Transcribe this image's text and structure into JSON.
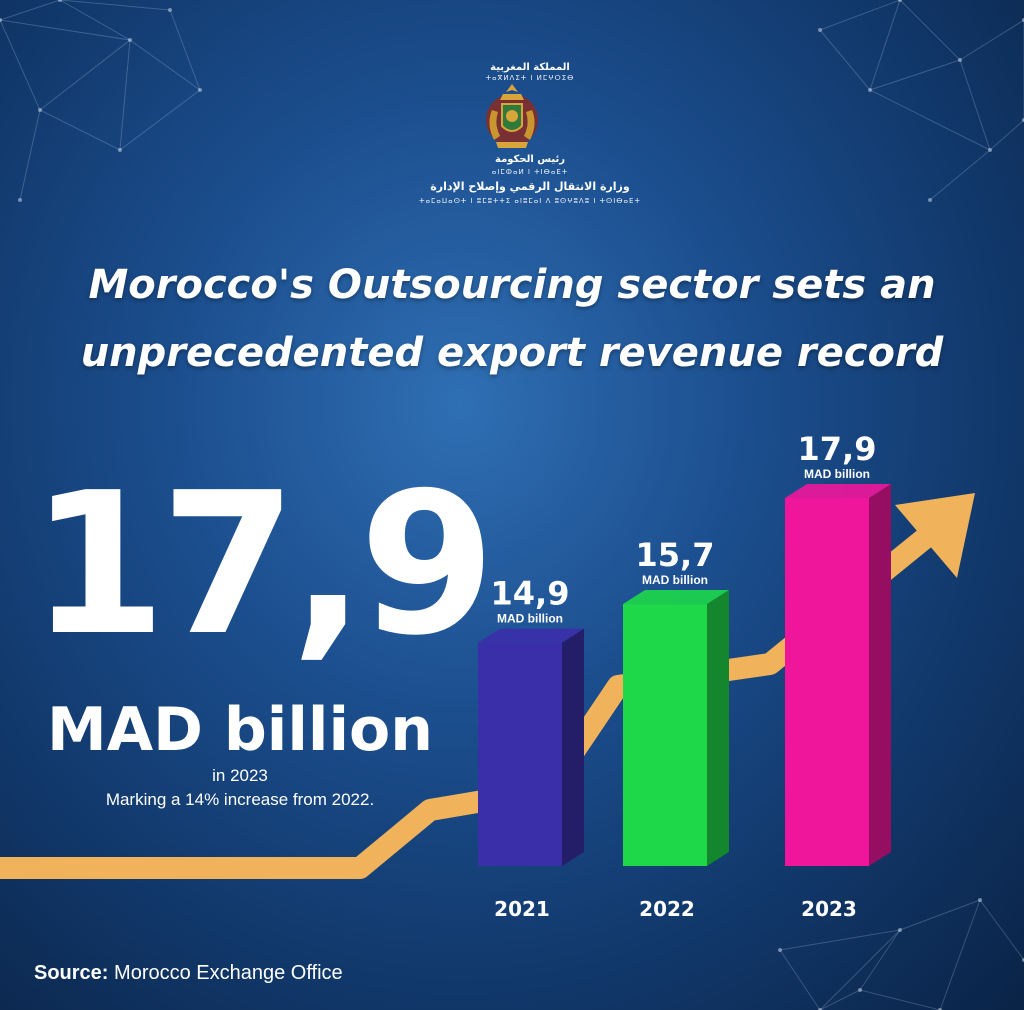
{
  "header": {
    "kingdom_ar": "المملكة المغربية",
    "kingdom_tf": "ⵜⴰⴳⵍⴷⵉⵜ ⵏ ⵍⵎⵖⵔⵉⴱ",
    "head_ar": "رئيس الحكومة",
    "head_tf": "ⴰⵏⵎⵀⴰⵍ ⵏ ⵜⵏⴱⴰⴹⵜ",
    "ministry_ar": "وزارة الانتقال الرقمي وإصلاح الإدارة",
    "ministry_tf": "ⵜⴰⵎⴰⵡⴰⵙⵜ ⵏ ⵓⵎⵓⵜⵜⵉ ⴰⵏⵓⵎⴰⵏ ⴷ ⵓⵙⵖⵓⴷⵓ ⵏ ⵜⵙⵏⴱⴰⴹⵜ"
  },
  "title": {
    "line1": "Morocco's Outsourcing sector sets an",
    "line2": "unprecedented export revenue record"
  },
  "highlight": {
    "value": "17,9",
    "unit": "MAD billion",
    "year_note": "in 2023",
    "increase_note": "Marking a 14% increase from 2022."
  },
  "chart_data": {
    "type": "bar",
    "categories": [
      "2021",
      "2022",
      "2023"
    ],
    "values": [
      14.9,
      15.7,
      17.9
    ],
    "value_labels": [
      "14,9",
      "15,7",
      "17,9"
    ],
    "unit_label": "MAD billion",
    "colors": [
      "#3a2fa8",
      "#1ed84a",
      "#f0169c"
    ],
    "trend_color": "#f0b25a"
  },
  "source": {
    "label": "Source:",
    "text": "Morocco Exchange Office"
  }
}
